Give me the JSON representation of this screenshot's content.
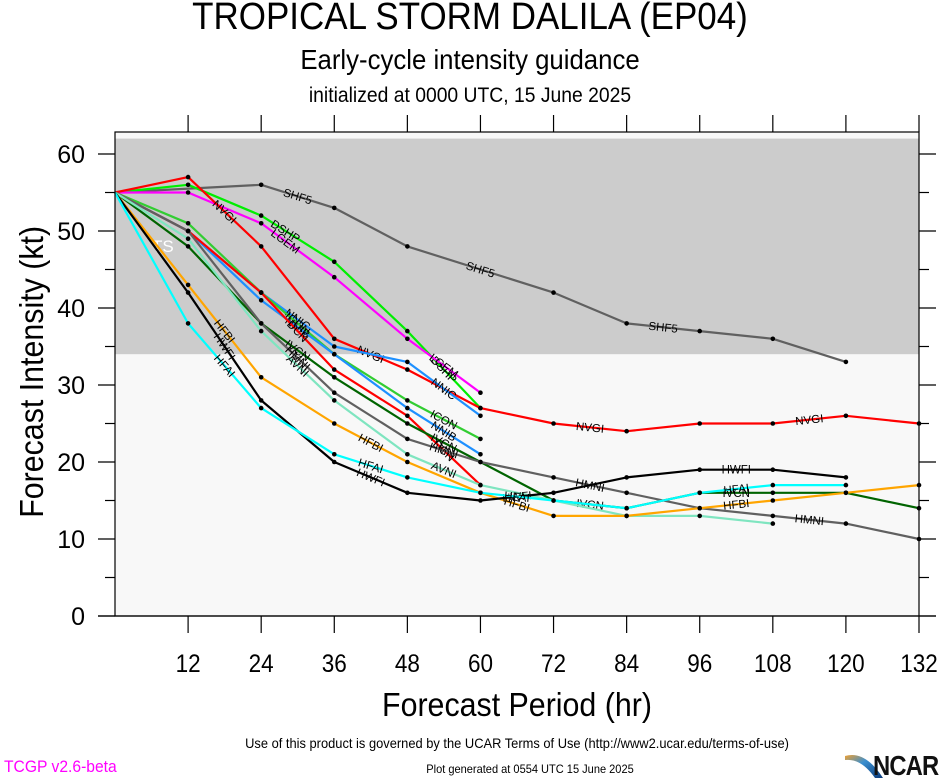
{
  "header": {
    "title": "TROPICAL STORM DALILA (EP04)",
    "subtitle": "Early-cycle intensity guidance",
    "init": "initialized at 0000 UTC, 15 June 2025"
  },
  "footer": {
    "terms": "Use of this product is governed by the UCAR Terms of Use (http://www2.ucar.edu/terms-of-use)",
    "version": "TCGP v2.6-beta",
    "generated": "Plot generated at 0554 UTC   15 June 2025",
    "logo": "NCAR",
    "version_color": "#ff00ff"
  },
  "chart_data": {
    "type": "line",
    "title": "TROPICAL STORM DALILA (EP04)",
    "xlabel": "Forecast Period (hr)",
    "ylabel": "Forecast Intensity (kt)",
    "xlim": [
      0,
      132
    ],
    "ylim": [
      0,
      62
    ],
    "xticks": [
      12,
      24,
      36,
      48,
      60,
      72,
      84,
      96,
      108,
      120,
      132
    ],
    "yticks": [
      0,
      10,
      20,
      30,
      40,
      50,
      60
    ],
    "shaded_region": {
      "label": "TS",
      "from": 34,
      "to": 62,
      "color": "#cccccc"
    },
    "background_color": "#f8f8f8",
    "series": [
      {
        "name": "SHF5",
        "color": "#606060",
        "x": [
          0,
          24,
          36,
          48,
          72,
          84,
          96,
          108,
          120
        ],
        "y": [
          55,
          56,
          53,
          48,
          42,
          38,
          37,
          36,
          33
        ],
        "labels_at": [
          30,
          60,
          90
        ]
      },
      {
        "name": "DSHP",
        "color": "#00ee00",
        "x": [
          0,
          12,
          24,
          36,
          48,
          60
        ],
        "y": [
          55,
          56,
          52,
          46,
          37,
          27
        ],
        "labels_at": [
          28,
          54
        ]
      },
      {
        "name": "LGEM",
        "color": "#ff00ff",
        "x": [
          0,
          12,
          24,
          36,
          48,
          60
        ],
        "y": [
          55,
          55,
          51,
          44,
          36,
          29
        ],
        "labels_at": [
          28,
          54
        ]
      },
      {
        "name": "NVGI",
        "color": "#ff0000",
        "x": [
          0,
          12,
          24,
          36,
          48,
          60,
          72,
          84,
          96,
          108,
          120,
          132
        ],
        "y": [
          55,
          57,
          48,
          36,
          32,
          27,
          25,
          24,
          25,
          25,
          26,
          25
        ],
        "labels_at": [
          18,
          42,
          78,
          114
        ]
      },
      {
        "name": "NNIC",
        "color": "#1e90ff",
        "x": [
          0,
          12,
          24,
          36,
          48,
          60
        ],
        "y": [
          55,
          50,
          42,
          35,
          33,
          26
        ],
        "labels_at": [
          30,
          54
        ]
      },
      {
        "name": "ICON",
        "color": "#32cd32",
        "x": [
          0,
          12,
          24,
          36,
          48,
          60
        ],
        "y": [
          55,
          51,
          42,
          34,
          28,
          23
        ],
        "labels_at": [
          30,
          54
        ]
      },
      {
        "name": "NNIB",
        "color": "#1e90ff",
        "x": [
          0,
          12,
          24,
          36,
          48,
          60
        ],
        "y": [
          55,
          50,
          41,
          34,
          27,
          21
        ],
        "labels_at": [
          30,
          54
        ]
      },
      {
        "name": "DCN",
        "color": "#ff0000",
        "x": [
          0,
          12,
          24,
          36,
          48,
          60
        ],
        "y": [
          55,
          50,
          42,
          32,
          26,
          17
        ],
        "labels_at": [
          30,
          54
        ]
      },
      {
        "name": "IVCN",
        "color": "#006400",
        "x": [
          0,
          12,
          24,
          36,
          48,
          60,
          72,
          84,
          96,
          108,
          120,
          132
        ],
        "y": [
          55,
          48,
          38,
          31,
          25,
          20,
          15,
          14,
          16,
          16,
          16,
          14
        ],
        "labels_at": [
          30,
          54,
          78,
          102
        ]
      },
      {
        "name": "HMNI",
        "color": "#606060",
        "x": [
          0,
          12,
          24,
          36,
          48,
          60,
          72,
          84,
          96,
          108,
          120,
          132
        ],
        "y": [
          55,
          50,
          38,
          29,
          23,
          20,
          18,
          16,
          14,
          13,
          12,
          10
        ],
        "labels_at": [
          30,
          54,
          78,
          114
        ]
      },
      {
        "name": "AVNI",
        "color": "#7fe5c0",
        "x": [
          0,
          12,
          24,
          36,
          48,
          60,
          72,
          84,
          96,
          108
        ],
        "y": [
          55,
          49,
          37,
          28,
          21,
          17,
          15,
          13,
          13,
          12
        ],
        "labels_at": [
          30,
          54
        ]
      },
      {
        "name": "HFBI",
        "color": "#ffa500",
        "x": [
          0,
          12,
          24,
          36,
          48,
          60,
          72,
          84,
          96,
          108,
          120,
          132
        ],
        "y": [
          55,
          43,
          31,
          25,
          20,
          16,
          13,
          13,
          14,
          15,
          16,
          17
        ],
        "labels_at": [
          18,
          42,
          66,
          102
        ]
      },
      {
        "name": "HWFI",
        "color": "#000000",
        "x": [
          0,
          12,
          24,
          36,
          48,
          60,
          72,
          84,
          96,
          108,
          120
        ],
        "y": [
          55,
          42,
          28,
          20,
          16,
          15,
          16,
          18,
          19,
          19,
          18
        ],
        "labels_at": [
          18,
          42,
          66,
          102
        ]
      },
      {
        "name": "HFAI",
        "color": "#00ffff",
        "x": [
          0,
          12,
          24,
          36,
          48,
          60,
          72,
          84,
          96,
          108,
          120
        ],
        "y": [
          55,
          38,
          27,
          21,
          18,
          16,
          15,
          14,
          16,
          17,
          17
        ],
        "labels_at": [
          18,
          42,
          66,
          102
        ]
      }
    ]
  }
}
